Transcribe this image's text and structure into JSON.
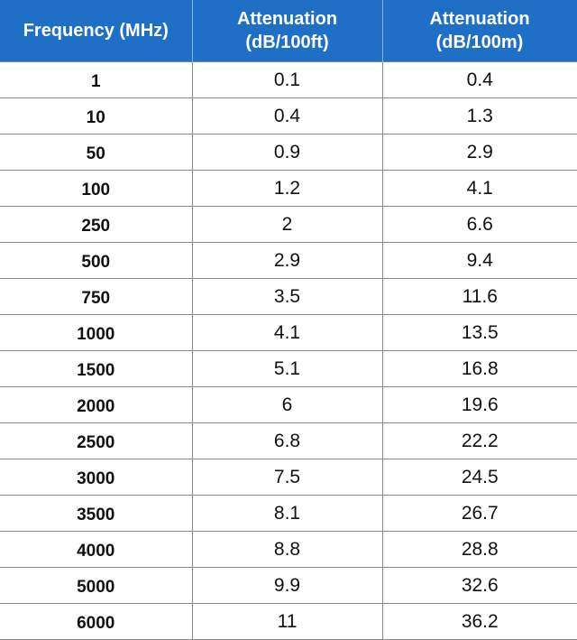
{
  "table": {
    "header": [
      "Frequency (MHz)",
      "Attenuation (dB/100ft)",
      "Attenuation (dB/100m)"
    ],
    "rows": [
      [
        "1",
        "0.1",
        "0.4"
      ],
      [
        "10",
        "0.4",
        "1.3"
      ],
      [
        "50",
        "0.9",
        "2.9"
      ],
      [
        "100",
        "1.2",
        "4.1"
      ],
      [
        "250",
        "2",
        "6.6"
      ],
      [
        "500",
        "2.9",
        "9.4"
      ],
      [
        "750",
        "3.5",
        "11.6"
      ],
      [
        "1000",
        "4.1",
        "13.5"
      ],
      [
        "1500",
        "5.1",
        "16.8"
      ],
      [
        "2000",
        "6",
        "19.6"
      ],
      [
        "2500",
        "6.8",
        "22.2"
      ],
      [
        "3000",
        "7.5",
        "24.5"
      ],
      [
        "3500",
        "8.1",
        "26.7"
      ],
      [
        "4000",
        "8.8",
        "28.8"
      ],
      [
        "5000",
        "9.9",
        "32.6"
      ],
      [
        "6000",
        "11",
        "36.2"
      ]
    ]
  }
}
